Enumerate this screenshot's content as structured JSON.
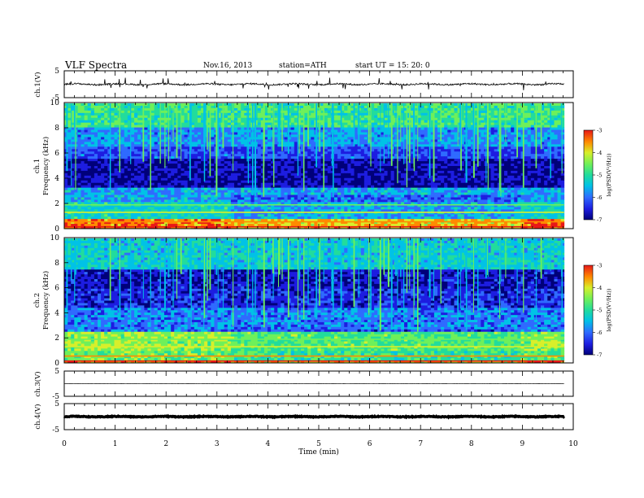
{
  "header": {
    "title": "VLF  Spectra",
    "date": "Nov.16, 2013",
    "station": "station=ATH",
    "start": "start  UT  =   15: 20: 0"
  },
  "colors": {
    "spectrogram_palette": [
      "#00007a",
      "#1d1de0",
      "#2f6bff",
      "#00c2e6",
      "#22dc9c",
      "#6ef05a",
      "#d8ef2a",
      "#ff8a00",
      "#e81818"
    ],
    "waveform": "#000000",
    "axes": "#000000"
  },
  "chart_data": [
    {
      "type": "line",
      "panel": "ch1-waveform",
      "ylabel": "ch.1(V)",
      "ylim": [
        -5,
        5
      ],
      "yticks": [
        "5",
        "-5"
      ],
      "xlim": [
        0,
        10
      ],
      "series": [
        {
          "values_note": "",
          "baseline": 0,
          "amplitude_volts": 0.6,
          "spike_amplitude_volts": 2.2
        }
      ]
    },
    {
      "type": "heatmap",
      "panel": "ch1-spectrogram",
      "ylabel": "ch.1\nFrequency (kHz)",
      "ylabel_channel": "ch.1",
      "ylabel_quantity": "Frequency (kHz)",
      "ylim": [
        0,
        10
      ],
      "yticks": [
        "0",
        "2",
        "4",
        "6",
        "8",
        "10"
      ],
      "xlim": [
        0,
        9.82
      ],
      "colorbar": {
        "label": "log(PSD(V²/Hz))",
        "range": [
          -7,
          -3
        ],
        "ticks": [
          "-3",
          "-4",
          "-5",
          "-6",
          "-7"
        ]
      },
      "bands": [
        {
          "f": [
            0.0,
            0.2
          ],
          "log_psd": -3.5
        },
        {
          "f": [
            0.2,
            0.8
          ],
          "log_psd": -3.6
        },
        {
          "f": [
            0.8,
            2.2
          ],
          "log_psd": -5.2
        },
        {
          "f": [
            2.2,
            3.2
          ],
          "log_psd": -5.6
        },
        {
          "f": [
            3.2,
            5.6
          ],
          "log_psd": -6.6
        },
        {
          "f": [
            5.6,
            6.5
          ],
          "log_psd": -6.1
        },
        {
          "f": [
            6.5,
            8.0
          ],
          "log_psd": -5.7
        },
        {
          "f": [
            8.0,
            10.0
          ],
          "log_psd": -4.9
        }
      ]
    },
    {
      "type": "heatmap",
      "panel": "ch2-spectrogram",
      "ylabel": "ch.2\nFrequency (kHz)",
      "ylabel_channel": "ch.2",
      "ylabel_quantity": "Frequency (kHz)",
      "ylim": [
        0,
        10
      ],
      "yticks": [
        "0",
        "2",
        "4",
        "6",
        "8",
        "10"
      ],
      "xlim": [
        0,
        9.82
      ],
      "colorbar": {
        "label": "log(PSD(V²/Hz))",
        "range": [
          -7,
          -3
        ],
        "ticks": [
          "-3",
          "-4",
          "-5",
          "-6",
          "-7"
        ]
      },
      "bands": [
        {
          "f": [
            0.0,
            0.2
          ],
          "log_psd": -3.6
        },
        {
          "f": [
            0.2,
            1.0
          ],
          "log_psd": -4.6
        },
        {
          "f": [
            1.0,
            2.5
          ],
          "log_psd": -4.4
        },
        {
          "f": [
            2.5,
            4.5
          ],
          "log_psd": -5.8
        },
        {
          "f": [
            4.5,
            6.0
          ],
          "log_psd": -6.3
        },
        {
          "f": [
            6.0,
            7.5
          ],
          "log_psd": -6.5
        },
        {
          "f": [
            7.5,
            10.0
          ],
          "log_psd": -5.3
        }
      ]
    },
    {
      "type": "line",
      "panel": "ch3-waveform",
      "ylabel": "ch.3(V)",
      "ylim": [
        -5,
        5
      ],
      "yticks": [
        "5",
        "-5"
      ],
      "xlim": [
        0,
        10
      ],
      "series": [
        {
          "baseline": 0,
          "amplitude_volts": 0.05
        }
      ]
    },
    {
      "type": "line",
      "panel": "ch4-waveform",
      "ylabel": "ch.4(V)",
      "ylim": [
        -5,
        5
      ],
      "yticks": [
        "5",
        "-5"
      ],
      "xlim": [
        0,
        10
      ],
      "series": [
        {
          "baseline": 0,
          "amplitude_volts": 0.3
        }
      ]
    }
  ],
  "xaxis": {
    "label": "Time  (min)",
    "range": [
      0,
      10
    ],
    "ticks": [
      "0",
      "1",
      "2",
      "3",
      "4",
      "5",
      "6",
      "7",
      "8",
      "9",
      "10"
    ]
  }
}
